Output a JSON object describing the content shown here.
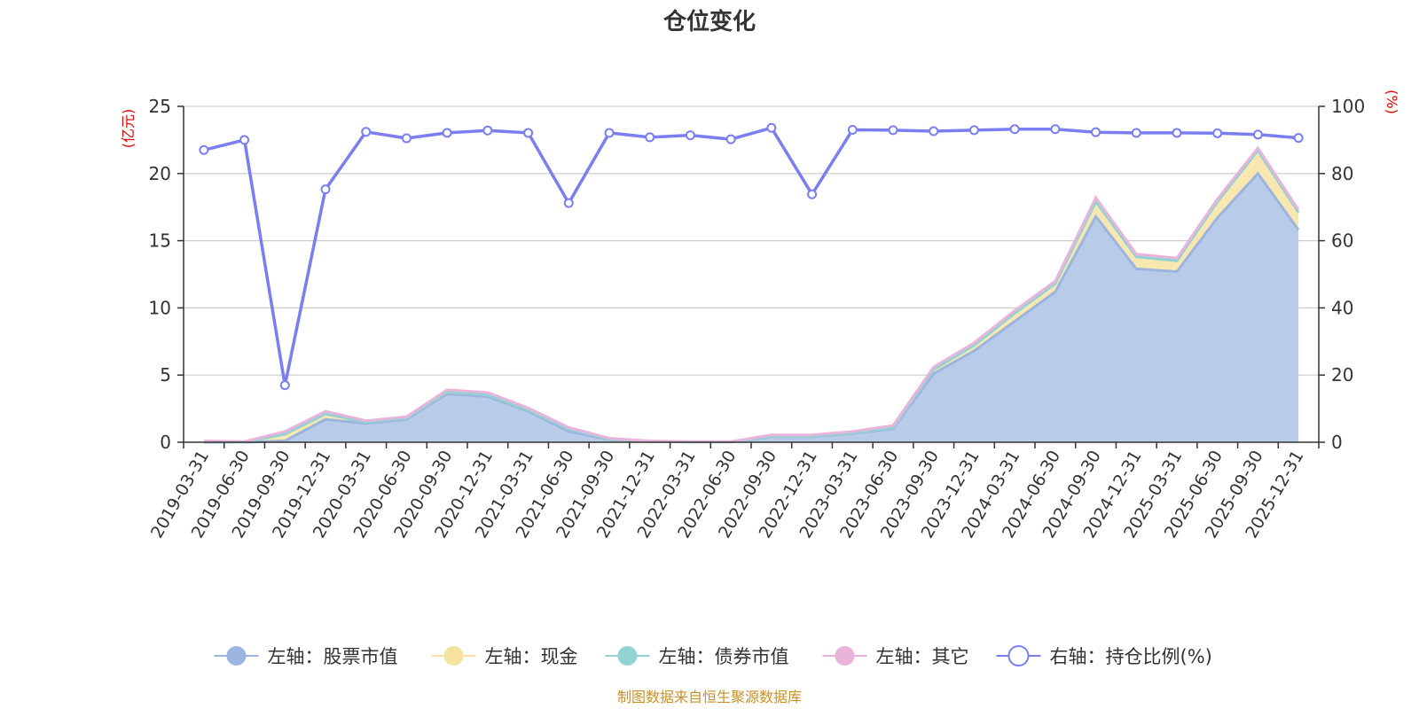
{
  "chart_data": {
    "type": "area",
    "title": "仓位变化",
    "left_unit": "(亿元)",
    "right_unit": "(%)",
    "source": "制图数据来自恒生聚源数据库",
    "left_axis": {
      "min": 0,
      "max": 25,
      "ticks": [
        0,
        5,
        10,
        15,
        20,
        25
      ]
    },
    "right_axis": {
      "min": 0,
      "max": 100,
      "ticks": [
        0,
        20,
        40,
        60,
        80,
        100
      ]
    },
    "grid": true,
    "legend_position": "bottom",
    "x": [
      "2019-03-31",
      "2019-06-30",
      "2019-09-30",
      "2019-12-31",
      "2020-03-31",
      "2020-06-30",
      "2020-09-30",
      "2020-12-31",
      "2021-03-31",
      "2021-06-30",
      "2021-09-30",
      "2021-12-31",
      "2022-03-31",
      "2022-06-30",
      "2022-09-30",
      "2022-12-31",
      "2023-03-31",
      "2023-06-30",
      "2023-09-30",
      "2023-12-31",
      "2024-03-31",
      "2024-06-30",
      "2024-09-30",
      "2024-12-31",
      "2025-03-31",
      "2025-06-30",
      "2025-09-30",
      "2025-12-31"
    ],
    "series": [
      {
        "name": "左轴：股票市值",
        "axis": "left",
        "kind": "stack-area",
        "color": "#9bb5e0",
        "fill": "#b8cbe9",
        "values": [
          0.0,
          0.0,
          0.1,
          1.7,
          1.4,
          1.7,
          3.6,
          3.4,
          2.3,
          0.8,
          0.2,
          0.05,
          0.02,
          0.02,
          0.4,
          0.4,
          0.65,
          1.0,
          5.1,
          6.8,
          9.0,
          11.2,
          16.8,
          12.9,
          12.7,
          16.7,
          20.0,
          15.8
        ]
      },
      {
        "name": "左轴：现金",
        "axis": "left",
        "kind": "stack-area",
        "color": "#f5e2a0",
        "fill": "#f8e8b0",
        "values": [
          0.05,
          0.0,
          0.5,
          0.4,
          0.1,
          0.1,
          0.15,
          0.15,
          0.1,
          0.2,
          0.05,
          0.02,
          0.01,
          0.01,
          0.05,
          0.05,
          0.05,
          0.1,
          0.3,
          0.4,
          0.6,
          0.6,
          1.1,
          0.9,
          0.8,
          1.2,
          1.7,
          1.3
        ]
      },
      {
        "name": "左轴：债券市值",
        "axis": "left",
        "kind": "stack-area",
        "color": "#91d3d3",
        "fill": "#a8dcdc",
        "values": [
          0,
          0,
          0,
          0,
          0,
          0,
          0,
          0,
          0,
          0,
          0,
          0,
          0,
          0,
          0,
          0,
          0,
          0,
          0,
          0,
          0,
          0,
          0,
          0,
          0,
          0,
          0,
          0
        ]
      },
      {
        "name": "左轴：其它",
        "axis": "left",
        "kind": "stack-area",
        "color": "#e8b4dc",
        "fill": "#f0cce8",
        "values": [
          0.05,
          0.05,
          0.2,
          0.2,
          0.1,
          0.1,
          0.15,
          0.15,
          0.15,
          0.1,
          0.05,
          0.03,
          0.02,
          0.02,
          0.1,
          0.1,
          0.1,
          0.15,
          0.2,
          0.2,
          0.2,
          0.2,
          0.3,
          0.2,
          0.2,
          0.2,
          0.2,
          0.2
        ]
      },
      {
        "name": "右轴：持仓比例(%)",
        "axis": "right",
        "kind": "line",
        "color": "#7b7ef0",
        "values": [
          87.0,
          90.0,
          17.0,
          75.3,
          92.4,
          90.5,
          92.1,
          92.8,
          92.1,
          71.2,
          92.1,
          90.8,
          91.4,
          90.2,
          93.6,
          73.8,
          93.0,
          92.9,
          92.6,
          92.9,
          93.2,
          93.2,
          92.3,
          92.1,
          92.1,
          92.0,
          91.6,
          90.6
        ]
      }
    ]
  }
}
